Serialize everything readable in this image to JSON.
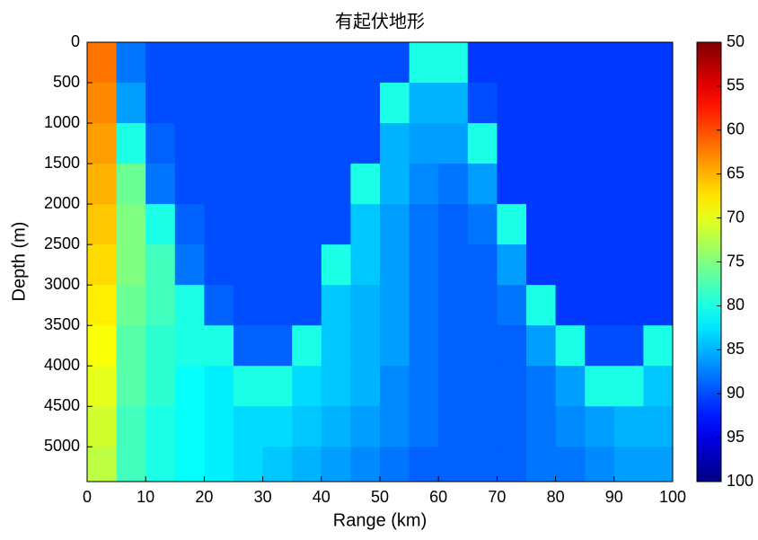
{
  "chart_data": {
    "type": "heatmap",
    "title": "有起伏地形",
    "x_label": "Range (km)",
    "y_label": "Depth (m)",
    "x": [
      2.5,
      7.5,
      12.5,
      17.5,
      22.5,
      27.5,
      32.5,
      37.5,
      42.5,
      47.5,
      52.5,
      57.5,
      62.5,
      67.5,
      72.5,
      77.5,
      82.5,
      87.5,
      92.5,
      97.5
    ],
    "y": [
      250,
      750,
      1250,
      1750,
      2250,
      2750,
      3250,
      3750,
      4250,
      4750,
      5250
    ],
    "values": [
      [
        62,
        88,
        90,
        90,
        90,
        90,
        90,
        90,
        90,
        90,
        90,
        80,
        80,
        91,
        91,
        91,
        91,
        91,
        91,
        91
      ],
      [
        63,
        86,
        90,
        90,
        90,
        90,
        90,
        90,
        90,
        90,
        80,
        85,
        85,
        90,
        91,
        91,
        91,
        91,
        91,
        91
      ],
      [
        64,
        80,
        89,
        90,
        90,
        90,
        90,
        90,
        90,
        90,
        85,
        86,
        86,
        80,
        91,
        91,
        91,
        91,
        91,
        91
      ],
      [
        65,
        76,
        88,
        90,
        90,
        90,
        90,
        90,
        90,
        80,
        85,
        87,
        88,
        86,
        91,
        91,
        91,
        91,
        91,
        91
      ],
      [
        66,
        75,
        80,
        89,
        90,
        90,
        90,
        90,
        90,
        84,
        86,
        88,
        89,
        88,
        80,
        91,
        91,
        91,
        91,
        91
      ],
      [
        67,
        75,
        78,
        88,
        90,
        90,
        90,
        90,
        80,
        84,
        86,
        88,
        89,
        89,
        86,
        91,
        91,
        91,
        91,
        91
      ],
      [
        68,
        76,
        78,
        80,
        89,
        90,
        90,
        90,
        84,
        85,
        86,
        88,
        89,
        89,
        88,
        80,
        91,
        91,
        91,
        91
      ],
      [
        69,
        77,
        79,
        80,
        80,
        89,
        89,
        80,
        84,
        85,
        86,
        88,
        89,
        89,
        89,
        86,
        80,
        90,
        90,
        80
      ],
      [
        70,
        77,
        79,
        81,
        82,
        80,
        80,
        83,
        84,
        85,
        87,
        88,
        89,
        89,
        89,
        88,
        86,
        80,
        80,
        84
      ],
      [
        71,
        78,
        80,
        81,
        82,
        83,
        83,
        84,
        85,
        86,
        87,
        88,
        89,
        89,
        89,
        88,
        87,
        86,
        85,
        85
      ],
      [
        72,
        78,
        80,
        81,
        82,
        83,
        84,
        85,
        86,
        87,
        88,
        89,
        89,
        89,
        89,
        88,
        88,
        87,
        86,
        86
      ]
    ],
    "colormap": "jet",
    "reverse_colormap": true,
    "xlim": [
      0,
      100
    ],
    "xticks": [
      0,
      10,
      20,
      30,
      40,
      50,
      60,
      70,
      80,
      90,
      100
    ],
    "ylim": [
      0,
      5430
    ],
    "y_reversed": true,
    "yticks": [
      0,
      500,
      1000,
      1500,
      2000,
      2500,
      3000,
      3500,
      4000,
      4500,
      5000
    ],
    "clim": [
      50,
      100
    ],
    "cticks": [
      50,
      55,
      60,
      65,
      70,
      75,
      80,
      85,
      90,
      95,
      100
    ]
  }
}
